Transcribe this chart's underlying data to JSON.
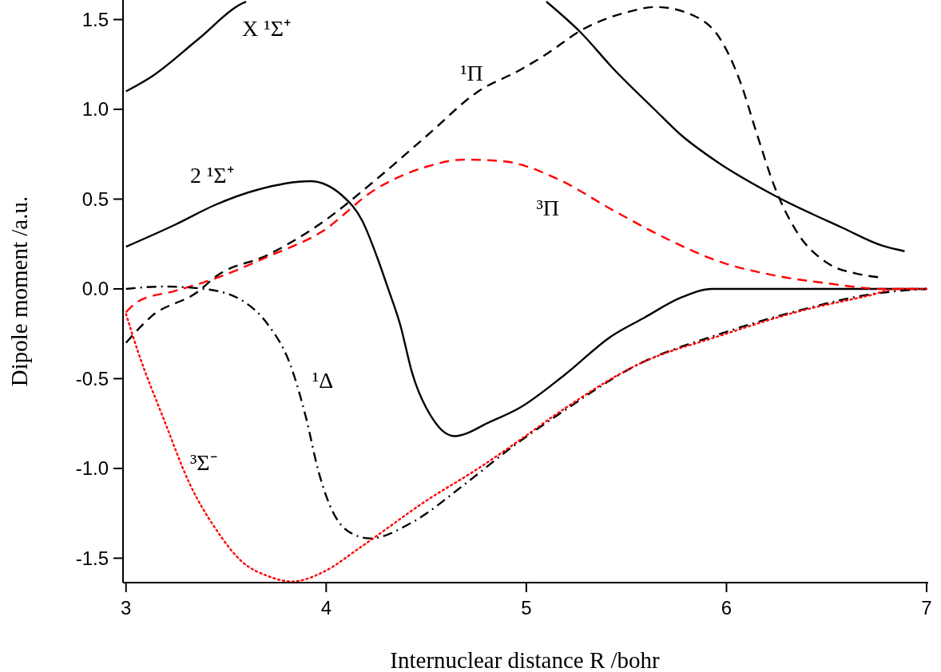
{
  "chart_data": {
    "type": "line",
    "xlabel": "Internuclear distance R /bohr",
    "ylabel": "Dipole moment /a.u.",
    "xlim": [
      2.985,
      7.0
    ],
    "ylim": [
      -1.636,
      1.609
    ],
    "xticks": [
      3,
      4,
      5,
      6,
      7
    ],
    "yticks": [
      {
        "value": -1.5,
        "label": "-1.5"
      },
      {
        "value": -1,
        "label": "-1.0"
      },
      {
        "value": -0.5,
        "label": "-0.5"
      },
      {
        "value": 0,
        "label": "0.0"
      },
      {
        "value": 0.5,
        "label": "0.5"
      },
      {
        "value": 1,
        "label": "1.0"
      },
      {
        "value": 1.5,
        "label": "1.5"
      }
    ],
    "grid": false,
    "legend": false,
    "marker": "none",
    "series": [
      {
        "name": "X ¹Σ⁺",
        "color": "#000000",
        "line_style": "solid",
        "x": [
          3.0,
          3.125,
          3.36,
          3.58,
          3.6,
          3.8,
          5.0,
          5.1,
          5.27,
          5.44,
          5.64,
          5.77,
          5.95,
          6.24,
          6.58,
          6.78,
          6.89
        ],
        "values": [
          1.1,
          1.18,
          1.39,
          1.59,
          1.6,
          null,
          null,
          1.6,
          1.43,
          1.22,
          1.0,
          0.86,
          0.71,
          0.52,
          0.34,
          0.24,
          0.21
        ]
      },
      {
        "name": "2 ¹Σ⁺",
        "color": "#000000",
        "line_style": "solid",
        "x": [
          3.0,
          3.25,
          3.45,
          3.65,
          3.92,
          4.08,
          4.18,
          4.26,
          4.31,
          4.37,
          4.43,
          4.53,
          4.64,
          4.82,
          4.97,
          5.19,
          5.43,
          5.59,
          5.77,
          5.93,
          7.0
        ],
        "values": [
          0.235,
          0.36,
          0.47,
          0.55,
          0.6,
          0.52,
          0.38,
          0.16,
          0.0,
          -0.2,
          -0.47,
          -0.72,
          -0.82,
          -0.74,
          -0.66,
          -0.48,
          -0.26,
          -0.16,
          -0.05,
          0.0,
          0.0
        ]
      },
      {
        "name": "¹Π",
        "color": "#000000",
        "line_style": "dashed",
        "x": [
          3.0,
          3.125,
          3.36,
          3.45,
          3.71,
          3.98,
          4.24,
          4.5,
          4.76,
          4.97,
          5.09,
          5.29,
          5.5,
          5.65,
          5.84,
          5.97,
          6.07,
          6.15,
          6.24,
          6.35,
          6.51,
          6.65,
          6.76
        ],
        "values": [
          -0.3,
          -0.155,
          -0.015,
          0.07,
          0.19,
          0.37,
          0.6,
          0.85,
          1.1,
          1.22,
          1.3,
          1.45,
          1.54,
          1.57,
          1.52,
          1.39,
          1.15,
          0.87,
          0.57,
          0.32,
          0.14,
          0.085,
          0.065
        ]
      },
      {
        "name": "³Π",
        "color": "#ff0000",
        "line_style": "dashed",
        "x": [
          3.0,
          3.06,
          3.25,
          3.45,
          3.71,
          3.98,
          4.24,
          4.5,
          4.69,
          4.89,
          5.16,
          5.43,
          5.7,
          5.97,
          6.24,
          6.51,
          6.78,
          7.0
        ],
        "values": [
          -0.13,
          -0.07,
          -0.01,
          0.06,
          0.18,
          0.32,
          0.55,
          0.68,
          0.72,
          0.71,
          0.61,
          0.44,
          0.28,
          0.15,
          0.075,
          0.03,
          0.0,
          0.0
        ]
      },
      {
        "name": "¹Δ",
        "color": "#000000",
        "line_style": "dashdot",
        "x": [
          3.0,
          3.19,
          3.39,
          3.58,
          3.71,
          3.82,
          3.9,
          3.96,
          4.02,
          4.11,
          4.22,
          4.43,
          4.69,
          4.93,
          5.16,
          5.56,
          5.97,
          6.38,
          6.72,
          7.0
        ],
        "values": [
          0.0,
          0.013,
          0.0,
          -0.065,
          -0.2,
          -0.42,
          -0.72,
          -1.01,
          -1.21,
          -1.35,
          -1.39,
          -1.3,
          -1.09,
          -0.88,
          -0.7,
          -0.42,
          -0.25,
          -0.115,
          -0.03,
          0.0
        ]
      },
      {
        "name": "³Σ⁻",
        "color": "#ff0000",
        "line_style": "dotted",
        "x": [
          3.0,
          3.06,
          3.19,
          3.32,
          3.45,
          3.58,
          3.71,
          3.83,
          3.98,
          4.17,
          4.5,
          4.76,
          4.97,
          5.16,
          5.56,
          5.97,
          6.38,
          6.72,
          6.85,
          7.0
        ],
        "values": [
          -0.14,
          -0.35,
          -0.73,
          -1.09,
          -1.34,
          -1.52,
          -1.6,
          -1.63,
          -1.58,
          -1.44,
          -1.18,
          -1.0,
          -0.84,
          -0.69,
          -0.42,
          -0.26,
          -0.12,
          -0.035,
          0.0,
          0.0
        ]
      }
    ]
  }
}
